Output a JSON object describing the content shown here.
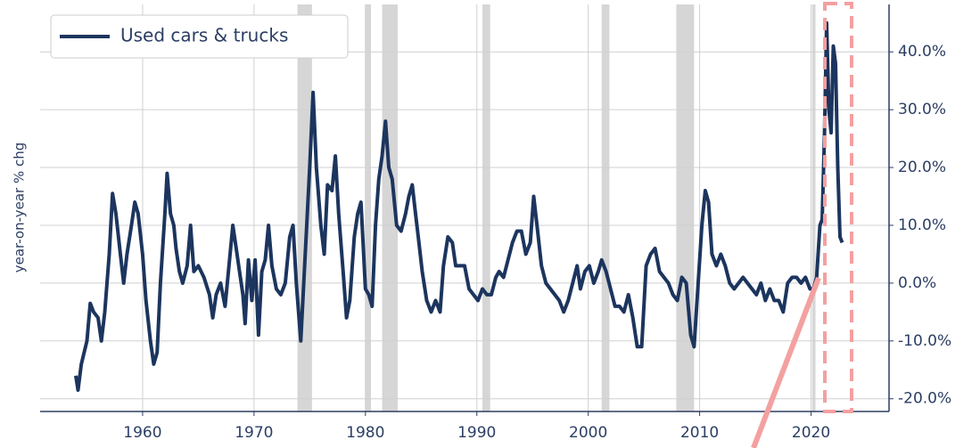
{
  "chart_data": {
    "type": "line",
    "y_label": "year-on-year % chg",
    "xlim": [
      1950.8,
      2027
    ],
    "ylim": [
      -22.2,
      48.2
    ],
    "xticks": [
      1960,
      1970,
      1980,
      1990,
      2000,
      2010,
      2020
    ],
    "yticks": [
      {
        "value": -20,
        "label": "-20.0%"
      },
      {
        "value": -10,
        "label": "-10.0%"
      },
      {
        "value": 0,
        "label": "0.0%"
      },
      {
        "value": 10,
        "label": "10.0%"
      },
      {
        "value": 20,
        "label": "20.0%"
      },
      {
        "value": 30,
        "label": "30.0%"
      },
      {
        "value": 40,
        "label": "40.0%"
      }
    ],
    "grid": true,
    "legend": "upper left",
    "y_axis_side": "right",
    "recessions": [
      [
        1973.9,
        1975.2
      ],
      [
        1980.0,
        1980.5
      ],
      [
        1981.5,
        1982.9
      ],
      [
        1990.5,
        1991.2
      ],
      [
        2001.2,
        2001.9
      ],
      [
        2007.9,
        2009.5
      ],
      [
        2020.1,
        2020.4
      ]
    ],
    "recession_color": "#d6d6d6",
    "x": [
      1954.0,
      1954.2,
      1954.5,
      1955.0,
      1955.3,
      1955.6,
      1956.0,
      1956.3,
      1956.6,
      1957.0,
      1957.3,
      1957.6,
      1958.0,
      1958.3,
      1958.6,
      1959.0,
      1959.3,
      1959.6,
      1960.0,
      1960.3,
      1960.7,
      1961.0,
      1961.3,
      1961.6,
      1962.0,
      1962.2,
      1962.5,
      1962.8,
      1963.0,
      1963.3,
      1963.6,
      1964.0,
      1964.3,
      1964.6,
      1965.0,
      1965.5,
      1966.0,
      1966.3,
      1966.6,
      1967.0,
      1967.4,
      1967.8,
      1968.1,
      1968.4,
      1968.7,
      1969.0,
      1969.2,
      1969.5,
      1969.8,
      1970.1,
      1970.4,
      1970.7,
      1971.0,
      1971.3,
      1971.6,
      1972.0,
      1972.4,
      1972.8,
      1973.2,
      1973.5,
      1973.8,
      1974.2,
      1974.6,
      1975.0,
      1975.3,
      1975.6,
      1976.0,
      1976.3,
      1976.6,
      1977.0,
      1977.3,
      1977.6,
      1978.0,
      1978.3,
      1978.6,
      1979.0,
      1979.3,
      1979.6,
      1980.0,
      1980.3,
      1980.6,
      1980.9,
      1981.2,
      1981.5,
      1981.8,
      1982.1,
      1982.4,
      1982.8,
      1983.2,
      1983.6,
      1983.9,
      1984.2,
      1984.5,
      1984.8,
      1985.1,
      1985.5,
      1985.9,
      1986.3,
      1986.7,
      1987.0,
      1987.4,
      1987.8,
      1988.1,
      1988.5,
      1988.9,
      1989.3,
      1989.7,
      1990.1,
      1990.5,
      1990.9,
      1991.3,
      1991.7,
      1992.0,
      1992.4,
      1992.8,
      1993.2,
      1993.6,
      1994.0,
      1994.4,
      1994.8,
      1995.1,
      1995.4,
      1995.8,
      1996.2,
      1996.6,
      1997.0,
      1997.4,
      1997.8,
      1998.2,
      1998.6,
      1999.0,
      1999.3,
      1999.7,
      2000.1,
      2000.5,
      2000.9,
      2001.2,
      2001.6,
      2002.0,
      2002.4,
      2002.8,
      2003.2,
      2003.6,
      2004.0,
      2004.4,
      2004.8,
      2005.2,
      2005.6,
      2006.0,
      2006.4,
      2006.8,
      2007.2,
      2007.6,
      2008.0,
      2008.4,
      2008.8,
      2009.2,
      2009.5,
      2009.8,
      2010.2,
      2010.5,
      2010.8,
      2011.1,
      2011.5,
      2011.9,
      2012.3,
      2012.7,
      2013.1,
      2013.5,
      2013.9,
      2014.3,
      2014.7,
      2015.1,
      2015.5,
      2015.9,
      2016.3,
      2016.7,
      2017.1,
      2017.5,
      2017.9,
      2018.3,
      2018.7,
      2019.1,
      2019.5,
      2019.9,
      2020.2,
      2020.5,
      2020.8,
      2021.0,
      2021.2,
      2021.4,
      2021.6,
      2021.8,
      2022.0,
      2022.2,
      2022.4,
      2022.6,
      2022.8
    ],
    "series": [
      {
        "name": "Used cars & trucks",
        "color": "#1c355e",
        "values": [
          -16,
          -18.5,
          -14,
          -10,
          -3.5,
          -5,
          -6,
          -10,
          -5,
          5,
          15.5,
          12,
          5,
          0,
          5,
          10,
          14,
          12,
          5,
          -3,
          -10,
          -14,
          -12,
          0,
          12,
          19,
          12,
          10,
          6,
          2,
          0,
          3,
          10,
          2,
          3,
          1,
          -2,
          -6,
          -2,
          0,
          -4,
          4,
          10,
          6,
          2,
          -2,
          -7,
          4,
          -3,
          4,
          -9,
          2,
          4,
          10,
          3,
          -1,
          -2,
          0,
          8,
          10,
          0,
          -10,
          5,
          20,
          33,
          20,
          10,
          5,
          17,
          16,
          22,
          12,
          2,
          -6,
          -3,
          8,
          12,
          14,
          -1,
          -2,
          -4,
          10,
          18,
          22,
          28,
          20,
          18,
          10,
          9,
          12,
          15,
          17,
          12,
          7,
          2,
          -3,
          -5,
          -3,
          -5,
          3,
          8,
          7,
          3,
          3,
          3,
          -1,
          -2,
          -3,
          -1,
          -2,
          -2,
          1,
          2,
          1,
          4,
          7,
          9,
          9,
          5,
          7,
          15,
          10,
          3,
          0,
          -1,
          -2,
          -3,
          -5,
          -3,
          0,
          3,
          -1,
          2,
          3,
          0,
          2,
          4,
          2,
          -1,
          -4,
          -4,
          -5,
          -2,
          -6,
          -11,
          -11,
          3,
          5,
          6,
          2,
          1,
          0,
          -2,
          -3,
          1,
          0,
          -9,
          -11,
          -2,
          10,
          16,
          14,
          5,
          3,
          5,
          3,
          0,
          -1,
          0,
          1,
          0,
          -1,
          -2,
          0,
          -3,
          -1,
          -3,
          -3,
          -5,
          0,
          1,
          1,
          0,
          1,
          -1,
          -1,
          1,
          10,
          11,
          25,
          45,
          30,
          26,
          41,
          38,
          20,
          8,
          7
        ]
      }
    ]
  }
}
